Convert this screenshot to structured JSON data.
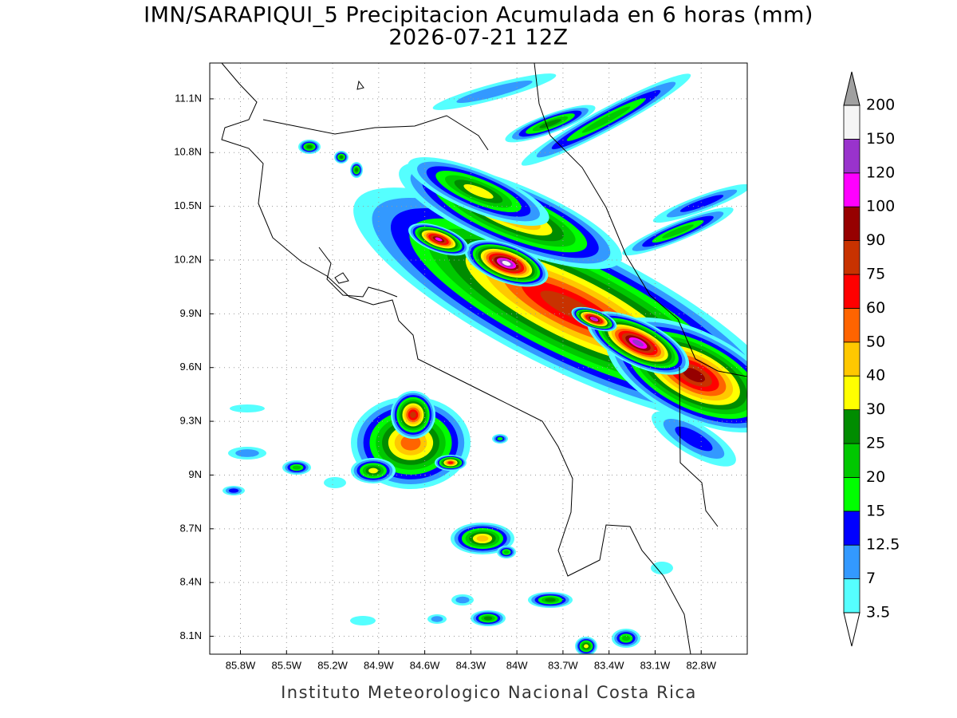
{
  "title": "IMN/SARAPIQUI_5 Precipitacion Acumulada en 6 horas (mm)",
  "subtitle": "2026-07-21 12Z",
  "footer": "Instituto Meteorologico Nacional Costa Rica",
  "map": {
    "lonlim": [
      -86.0,
      -82.5
    ],
    "latlim": [
      8.0,
      11.3
    ],
    "lonticks": [
      {
        "value": -85.8,
        "label": "85.8W"
      },
      {
        "value": -85.5,
        "label": "85.5W"
      },
      {
        "value": -85.2,
        "label": "85.2W"
      },
      {
        "value": -84.9,
        "label": "84.9W"
      },
      {
        "value": -84.6,
        "label": "84.6W"
      },
      {
        "value": -84.3,
        "label": "84.3W"
      },
      {
        "value": -84.0,
        "label": "84W"
      },
      {
        "value": -83.7,
        "label": "83.7W"
      },
      {
        "value": -83.4,
        "label": "83.4W"
      },
      {
        "value": -83.1,
        "label": "83.1W"
      },
      {
        "value": -82.8,
        "label": "82.8W"
      }
    ],
    "latticks": [
      {
        "value": 8.1,
        "label": "8.1N"
      },
      {
        "value": 8.4,
        "label": "8.4N"
      },
      {
        "value": 8.7,
        "label": "8.7N"
      },
      {
        "value": 9.0,
        "label": "9N"
      },
      {
        "value": 9.3,
        "label": "9.3N"
      },
      {
        "value": 9.6,
        "label": "9.6N"
      },
      {
        "value": 9.9,
        "label": "9.9N"
      },
      {
        "value": 10.2,
        "label": "10.2N"
      },
      {
        "value": 10.5,
        "label": "10.5N"
      },
      {
        "value": 10.8,
        "label": "10.8N"
      },
      {
        "value": 11.1,
        "label": "11.1N"
      }
    ],
    "grid": true
  },
  "colorbar": {
    "levels": [
      3.5,
      7,
      12.5,
      15,
      20,
      25,
      30,
      40,
      50,
      60,
      75,
      90,
      100,
      120,
      150,
      200
    ],
    "colors": [
      "#55ffff",
      "#3399ff",
      "#0000ff",
      "#00ff00",
      "#00c800",
      "#008c00",
      "#ffff00",
      "#ffc800",
      "#ff6400",
      "#ff0000",
      "#c83200",
      "#960000",
      "#ff00ff",
      "#9933cc",
      "#f5f5f5"
    ],
    "under_color": "#ffffff",
    "over_color": "#a0a0a0"
  }
}
